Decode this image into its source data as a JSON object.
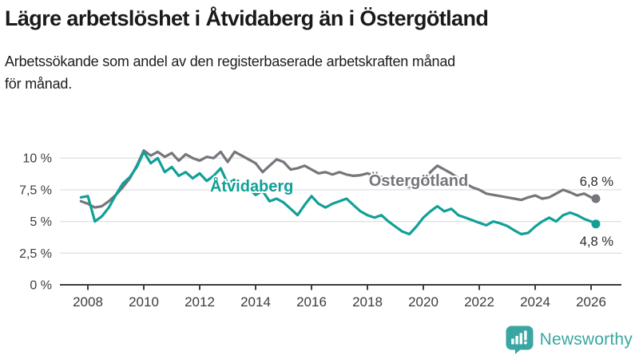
{
  "header": {
    "title": "Lägre arbetslöshet i Åtvidaberg än i Östergötland",
    "subtitle": "Arbetssökande som andel av den registerbaserade arbetskraften månad för månad.",
    "subtitle_lines": [
      "Arbetssökande som andel av den registerbaserade arbetskraften månad",
      "för månad."
    ]
  },
  "footer": {
    "brand": "Newsworthy",
    "brand_color": "#3AA6A1",
    "logo_icon": "bar-chart-speech-bubble"
  },
  "colors": {
    "atvidaberg": "#10A097",
    "ostergotland": "#75757B",
    "axis_text": "#3C3C3C",
    "gridline": "#E0E0E0",
    "axis_line": "#3C3C3C",
    "end_label_text": "#2B2B2B",
    "background": "#FFFFFF"
  },
  "chart_data": {
    "type": "line",
    "unit": "%",
    "grid": "horizontal",
    "legend": "inline-labels",
    "xlim": [
      2007.6,
      2026.6
    ],
    "ylim": [
      0,
      11
    ],
    "xticks": [
      2008,
      2010,
      2012,
      2014,
      2016,
      2018,
      2020,
      2022,
      2024,
      2026
    ],
    "yticks": [
      {
        "v": 0,
        "label": "0 %"
      },
      {
        "v": 2.5,
        "label": "2,5 %"
      },
      {
        "v": 5,
        "label": "5 %"
      },
      {
        "v": 7.5,
        "label": "7,5 %"
      },
      {
        "v": 10,
        "label": "10 %"
      }
    ],
    "x": [
      2007.75,
      2008.0,
      2008.25,
      2008.5,
      2008.75,
      2009.0,
      2009.25,
      2009.5,
      2009.75,
      2010.0,
      2010.25,
      2010.5,
      2010.75,
      2011.0,
      2011.25,
      2011.5,
      2011.75,
      2012.0,
      2012.25,
      2012.5,
      2012.75,
      2013.0,
      2013.25,
      2013.5,
      2013.75,
      2014.0,
      2014.25,
      2014.5,
      2014.75,
      2015.0,
      2015.25,
      2015.5,
      2015.75,
      2016.0,
      2016.25,
      2016.5,
      2016.75,
      2017.0,
      2017.25,
      2017.5,
      2017.75,
      2018.0,
      2018.25,
      2018.5,
      2018.75,
      2019.0,
      2019.25,
      2019.5,
      2019.75,
      2020.0,
      2020.25,
      2020.5,
      2020.75,
      2021.0,
      2021.25,
      2021.5,
      2021.75,
      2022.0,
      2022.25,
      2022.5,
      2022.75,
      2023.0,
      2023.25,
      2023.5,
      2023.75,
      2024.0,
      2024.25,
      2024.5,
      2024.75,
      2025.0,
      2025.25,
      2025.5,
      2025.75,
      2026.0,
      2026.17
    ],
    "series": [
      {
        "name": "Östergötland",
        "slug": "ostergotland",
        "color": "#75757B",
        "end_label": "6,8 %",
        "end_value": 6.8,
        "end_label_side": "above",
        "label_pos": {
          "x": 2018.05,
          "y": 7.8
        },
        "values": [
          6.6,
          6.4,
          6.1,
          6.2,
          6.6,
          7.1,
          7.7,
          8.4,
          9.4,
          10.6,
          10.2,
          10.5,
          10.1,
          10.4,
          9.8,
          10.3,
          10.0,
          9.8,
          10.1,
          10.0,
          10.5,
          9.7,
          10.5,
          10.2,
          9.9,
          9.6,
          8.9,
          9.4,
          9.9,
          9.7,
          9.1,
          9.2,
          9.4,
          9.1,
          8.8,
          8.9,
          8.7,
          8.9,
          8.7,
          8.6,
          8.65,
          8.8,
          8.6,
          8.5,
          8.3,
          8.1,
          7.9,
          7.7,
          7.8,
          8.1,
          8.9,
          9.4,
          9.1,
          8.8,
          8.4,
          8.0,
          7.7,
          7.5,
          7.2,
          7.1,
          7.0,
          6.9,
          6.8,
          6.7,
          6.9,
          7.05,
          6.8,
          6.9,
          7.2,
          7.5,
          7.3,
          7.05,
          7.2,
          6.9,
          6.8
        ]
      },
      {
        "name": "Åtvidaberg",
        "slug": "atvidaberg",
        "color": "#10A097",
        "end_label": "4,8 %",
        "end_value": 4.8,
        "end_label_side": "below",
        "label_pos": {
          "x": 2012.37,
          "y": 7.36
        },
        "values": [
          6.9,
          7.0,
          5.0,
          5.4,
          6.1,
          7.1,
          8.0,
          8.5,
          9.3,
          10.5,
          9.6,
          10.0,
          8.9,
          9.3,
          8.6,
          8.9,
          8.4,
          8.8,
          8.2,
          8.6,
          9.2,
          8.0,
          8.3,
          7.9,
          7.6,
          7.1,
          7.4,
          6.6,
          6.8,
          6.5,
          6.0,
          5.5,
          6.3,
          7.0,
          6.4,
          6.1,
          6.4,
          6.6,
          6.8,
          6.3,
          5.8,
          5.5,
          5.3,
          5.5,
          5.0,
          4.6,
          4.2,
          4.0,
          4.6,
          5.3,
          5.8,
          6.2,
          5.8,
          6.0,
          5.5,
          5.3,
          5.1,
          4.9,
          4.7,
          5.0,
          4.85,
          4.65,
          4.3,
          4.0,
          4.1,
          4.6,
          5.0,
          5.3,
          5.0,
          5.5,
          5.7,
          5.5,
          5.2,
          5.0,
          4.8
        ]
      }
    ]
  }
}
